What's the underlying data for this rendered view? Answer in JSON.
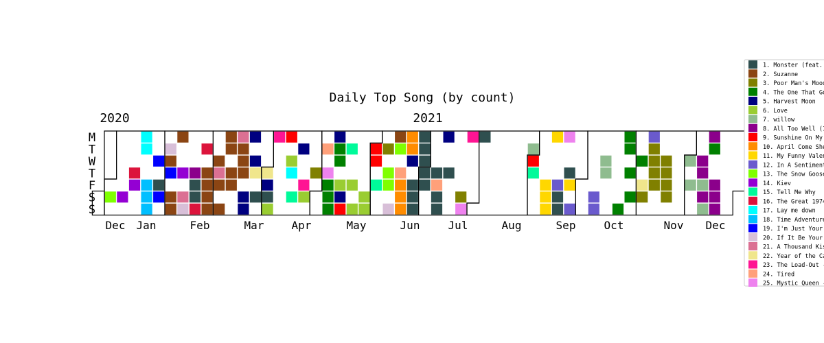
{
  "chart_data": {
    "type": "heatmap",
    "title": "Daily Top Song (by count)",
    "year_labels": [
      "2020",
      "2021"
    ],
    "day_labels": [
      "M",
      "T",
      "W",
      "T",
      "F",
      "S",
      "S"
    ],
    "month_labels": [
      "Dec",
      "Jan",
      "Feb",
      "Mar",
      "Apr",
      "May",
      "Jun",
      "Jul",
      "Aug",
      "Sep",
      "Oct",
      "Nov",
      "Dec"
    ],
    "legend": [
      {
        "label": "1. Monster (feat. ",
        "color": "#2f4f4f"
      },
      {
        "label": "2. Suzanne",
        "color": "#8b4513"
      },
      {
        "label": "3. Poor Man's Mood",
        "color": "#808000"
      },
      {
        "label": "4. The One That Go",
        "color": "#008000"
      },
      {
        "label": "5. Harvest Moon",
        "color": "#000080"
      },
      {
        "label": "6. Love",
        "color": "#9acd32"
      },
      {
        "label": "7. willow",
        "color": "#8fbc8f"
      },
      {
        "label": "8. All Too Well (1",
        "color": "#8b008b"
      },
      {
        "label": "9. Sunshine On My ",
        "color": "#ff0000"
      },
      {
        "label": "10. April Come She",
        "color": "#ff8c00"
      },
      {
        "label": "11. My Funny Valen",
        "color": "#ffd700"
      },
      {
        "label": "12. In A Sentiment",
        "color": "#6a5acd"
      },
      {
        "label": "13. The Snow Goose",
        "color": "#7fff00"
      },
      {
        "label": "14. Kiev",
        "color": "#9400d3"
      },
      {
        "label": "15. Tell Me Why",
        "color": "#00fa9a"
      },
      {
        "label": "16. The Great 1974",
        "color": "#dc143c"
      },
      {
        "label": "17. Lay me down",
        "color": "#00ffff"
      },
      {
        "label": "18. Time Adventure",
        "color": "#00bfff"
      },
      {
        "label": "19. I'm Just Your ",
        "color": "#0000ff"
      },
      {
        "label": "20. If It Be Your ",
        "color": "#d8bfd8"
      },
      {
        "label": "21. A Thousand Kis",
        "color": "#db7093"
      },
      {
        "label": "22. Year of the Ca",
        "color": "#f0e68c"
      },
      {
        "label": "23. The Load-Out -",
        "color": "#ff1493"
      },
      {
        "label": "24. Tired",
        "color": "#ffa07a"
      },
      {
        "label": "25. Mystic Queen -",
        "color": "#ee82ee"
      }
    ],
    "weeks_start": "2020-12-28",
    "cells": [
      {
        "week": "2020-12-28",
        "values": [
          0,
          0,
          0,
          0,
          0,
          13,
          0
        ]
      },
      {
        "week": "2021-01-04",
        "values": [
          0,
          0,
          0,
          0,
          0,
          14,
          0
        ]
      },
      {
        "week": "2021-01-11",
        "values": [
          0,
          0,
          0,
          16,
          14,
          0,
          0
        ]
      },
      {
        "week": "2021-01-18",
        "values": [
          17,
          17,
          0,
          0,
          18,
          18,
          18
        ]
      },
      {
        "week": "2021-01-25",
        "values": [
          0,
          0,
          19,
          0,
          1,
          19,
          0
        ]
      },
      {
        "week": "2021-02-01",
        "values": [
          0,
          20,
          2,
          19,
          0,
          2,
          2
        ]
      },
      {
        "week": "2021-02-08",
        "values": [
          2,
          0,
          0,
          14,
          0,
          21,
          20
        ]
      },
      {
        "week": "2021-02-15",
        "values": [
          0,
          0,
          0,
          8,
          1,
          1,
          16
        ]
      },
      {
        "week": "2021-02-22",
        "values": [
          0,
          16,
          0,
          2,
          2,
          2,
          2
        ]
      },
      {
        "week": "2021-03-01",
        "values": [
          0,
          0,
          2,
          21,
          2,
          0,
          2
        ]
      },
      {
        "week": "2021-03-08",
        "values": [
          2,
          2,
          0,
          2,
          2,
          0,
          0
        ]
      },
      {
        "week": "2021-03-15",
        "values": [
          21,
          2,
          2,
          2,
          0,
          5,
          5
        ]
      },
      {
        "week": "2021-03-22",
        "values": [
          5,
          0,
          5,
          22,
          0,
          1,
          0
        ]
      },
      {
        "week": "2021-03-29",
        "values": [
          0,
          0,
          0,
          22,
          5,
          1,
          6
        ]
      },
      {
        "week": "2021-04-05",
        "values": [
          23,
          0,
          0,
          0,
          0,
          0,
          0
        ]
      },
      {
        "week": "2021-04-12",
        "values": [
          9,
          0,
          6,
          17,
          0,
          15,
          0
        ]
      },
      {
        "week": "2021-04-19",
        "values": [
          0,
          5,
          0,
          0,
          23,
          6,
          0
        ]
      },
      {
        "week": "2021-04-26",
        "values": [
          0,
          0,
          0,
          3,
          0,
          0,
          0
        ]
      },
      {
        "week": "2021-05-03",
        "values": [
          0,
          24,
          0,
          25,
          4,
          4,
          4
        ]
      },
      {
        "week": "2021-05-10",
        "values": [
          5,
          4,
          4,
          0,
          6,
          5,
          9
        ]
      },
      {
        "week": "2021-05-17",
        "values": [
          0,
          15,
          0,
          0,
          6,
          0,
          6
        ]
      },
      {
        "week": "2021-05-24",
        "values": [
          0,
          0,
          0,
          0,
          0,
          6,
          6
        ]
      },
      {
        "week": "2021-05-31",
        "values": [
          0,
          9,
          9,
          0,
          15,
          0,
          0
        ]
      },
      {
        "week": "2021-06-07",
        "values": [
          0,
          3,
          0,
          13,
          13,
          0,
          20
        ]
      },
      {
        "week": "2021-06-14",
        "values": [
          2,
          13,
          0,
          24,
          10,
          10,
          10
        ]
      },
      {
        "week": "2021-06-21",
        "values": [
          10,
          10,
          5,
          0,
          1,
          1,
          1
        ]
      },
      {
        "week": "2021-06-28",
        "values": [
          1,
          1,
          1,
          1,
          1,
          0,
          0
        ]
      },
      {
        "week": "2021-07-05",
        "values": [
          0,
          0,
          0,
          1,
          24,
          1,
          1
        ]
      },
      {
        "week": "2021-07-12",
        "values": [
          5,
          0,
          0,
          1,
          0,
          0,
          0
        ]
      },
      {
        "week": "2021-07-19",
        "values": [
          0,
          0,
          0,
          0,
          0,
          3,
          25
        ]
      },
      {
        "week": "2021-07-26",
        "values": [
          23,
          0,
          0,
          0,
          0,
          0,
          0
        ]
      },
      {
        "week": "2021-08-02",
        "values": [
          1,
          0,
          0,
          0,
          0,
          0,
          0
        ]
      },
      {
        "week": "2021-08-09",
        "values": [
          0,
          0,
          0,
          0,
          0,
          0,
          0
        ]
      },
      {
        "week": "2021-08-16",
        "values": [
          0,
          0,
          0,
          0,
          0,
          0,
          0
        ]
      },
      {
        "week": "2021-08-23",
        "values": [
          0,
          0,
          0,
          0,
          0,
          0,
          0
        ]
      },
      {
        "week": "2021-08-30",
        "values": [
          0,
          7,
          9,
          15,
          0,
          0,
          0
        ]
      },
      {
        "week": "2021-09-06",
        "values": [
          0,
          0,
          0,
          0,
          11,
          11,
          11
        ]
      },
      {
        "week": "2021-09-13",
        "values": [
          11,
          0,
          0,
          0,
          12,
          1,
          1
        ]
      },
      {
        "week": "2021-09-20",
        "values": [
          25,
          0,
          0,
          1,
          11,
          0,
          12
        ]
      },
      {
        "week": "2021-09-27",
        "values": [
          0,
          0,
          0,
          0,
          0,
          0,
          0
        ]
      },
      {
        "week": "2021-10-04",
        "values": [
          0,
          0,
          0,
          0,
          0,
          12,
          12
        ]
      },
      {
        "week": "2021-10-11",
        "values": [
          0,
          0,
          7,
          7,
          0,
          0,
          0
        ]
      },
      {
        "week": "2021-10-18",
        "values": [
          0,
          0,
          0,
          0,
          0,
          0,
          4
        ]
      },
      {
        "week": "2021-10-25",
        "values": [
          4,
          4,
          0,
          4,
          0,
          4,
          0
        ]
      },
      {
        "week": "2021-11-01",
        "values": [
          0,
          0,
          4,
          0,
          22,
          3,
          0
        ]
      },
      {
        "week": "2021-11-08",
        "values": [
          12,
          3,
          3,
          3,
          3,
          0,
          0
        ]
      },
      {
        "week": "2021-11-15",
        "values": [
          0,
          0,
          3,
          3,
          3,
          3,
          0
        ]
      },
      {
        "week": "2021-11-22",
        "values": [
          0,
          0,
          0,
          0,
          0,
          0,
          0
        ]
      },
      {
        "week": "2021-11-29",
        "values": [
          0,
          0,
          7,
          0,
          7,
          0,
          0
        ]
      },
      {
        "week": "2021-12-06",
        "values": [
          0,
          0,
          8,
          8,
          7,
          8,
          7
        ]
      },
      {
        "week": "2021-12-13",
        "values": [
          8,
          4,
          0,
          0,
          8,
          8,
          8
        ]
      }
    ]
  }
}
